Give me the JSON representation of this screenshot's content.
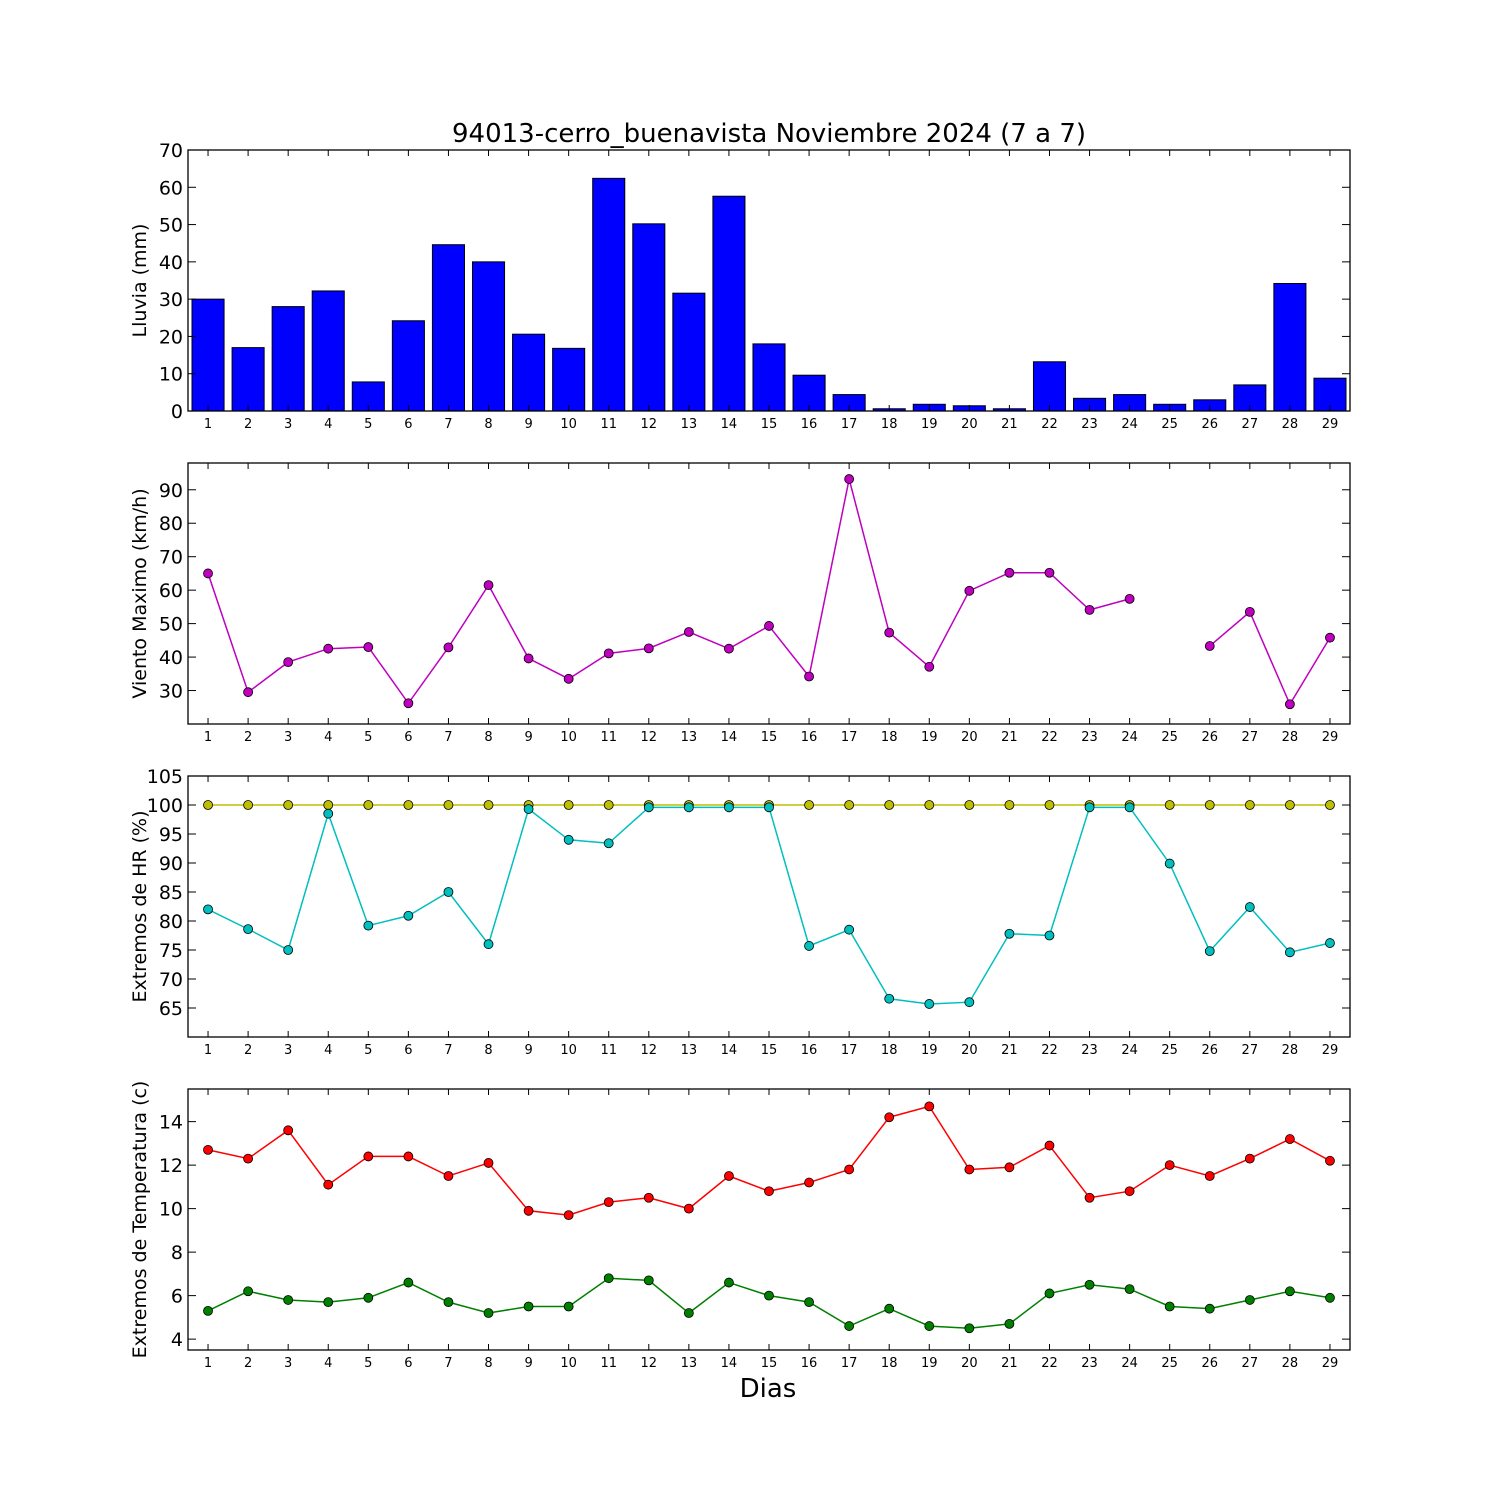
{
  "chart_data": [
    {
      "type": "bar",
      "title": "94013-cerro_buenavista Noviembre 2024  (7 a 7)",
      "ylabel": "Lluvia (mm)",
      "xlabel": "",
      "categories": [
        "1",
        "2",
        "3",
        "4",
        "5",
        "6",
        "7",
        "8",
        "9",
        "10",
        "11",
        "12",
        "13",
        "14",
        "15",
        "16",
        "17",
        "18",
        "19",
        "20",
        "21",
        "22",
        "23",
        "24",
        "25",
        "26",
        "27",
        "28",
        "29"
      ],
      "values": [
        30,
        17,
        28,
        32.2,
        7.8,
        24.2,
        44.6,
        40,
        20.6,
        16.8,
        62.4,
        50.2,
        31.6,
        57.6,
        18,
        9.6,
        4.4,
        0.6,
        1.8,
        1.4,
        0.6,
        13.2,
        3.4,
        4.4,
        1.8,
        3,
        7,
        34.2,
        8.8
      ],
      "ylim": [
        0,
        70
      ],
      "yticks": [
        0,
        10,
        20,
        30,
        40,
        50,
        60,
        70
      ],
      "color": "#0000ff"
    },
    {
      "type": "line",
      "ylabel": "Viento Maximo (km/h)",
      "xlabel": "",
      "categories": [
        "1",
        "2",
        "3",
        "4",
        "5",
        "6",
        "7",
        "8",
        "9",
        "10",
        "11",
        "12",
        "13",
        "14",
        "15",
        "16",
        "17",
        "18",
        "19",
        "20",
        "21",
        "22",
        "23",
        "24",
        "25",
        "26",
        "27",
        "28",
        "29"
      ],
      "series": [
        {
          "values": [
            65,
            29.5,
            38.5,
            42.5,
            43,
            26.2,
            42.9,
            61.5,
            39.6,
            33.5,
            41.1,
            42.6,
            47.5,
            42.5,
            49.3,
            34.2,
            93.2,
            47.3,
            37.1,
            59.8,
            65.2,
            65.2,
            54.1,
            57.4,
            null,
            43.3,
            53.5,
            25.9,
            45.8
          ],
          "color": "#bf00bf"
        }
      ],
      "ylim": [
        20,
        98
      ],
      "yticks": [
        30,
        40,
        50,
        60,
        70,
        80,
        90
      ]
    },
    {
      "type": "line",
      "ylabel": "Extremos de HR (%)",
      "xlabel": "",
      "categories": [
        "1",
        "2",
        "3",
        "4",
        "5",
        "6",
        "7",
        "8",
        "9",
        "10",
        "11",
        "12",
        "13",
        "14",
        "15",
        "16",
        "17",
        "18",
        "19",
        "20",
        "21",
        "22",
        "23",
        "24",
        "25",
        "26",
        "27",
        "28",
        "29"
      ],
      "series": [
        {
          "values": [
            100,
            100,
            100,
            100,
            100,
            100,
            100,
            100,
            100,
            100,
            100,
            100,
            100,
            100,
            100,
            100,
            100,
            100,
            100,
            100,
            100,
            100,
            100,
            100,
            100,
            100,
            100,
            100,
            100
          ],
          "color": "#bfbf00"
        },
        {
          "values": [
            82,
            78.6,
            75,
            98.5,
            79.2,
            80.9,
            85,
            76,
            99.3,
            94,
            93.4,
            99.6,
            99.6,
            99.6,
            99.6,
            75.7,
            78.5,
            66.6,
            65.7,
            66,
            77.8,
            77.5,
            99.6,
            99.6,
            89.9,
            74.8,
            82.4,
            74.6,
            76.2
          ],
          "color": "#00bfbf"
        }
      ],
      "ylim": [
        60,
        105
      ],
      "yticks": [
        65,
        70,
        75,
        80,
        85,
        90,
        95,
        100,
        105
      ]
    },
    {
      "type": "line",
      "ylabel": "Extremos de Temperatura (c)",
      "xlabel": "Dias",
      "categories": [
        "1",
        "2",
        "3",
        "4",
        "5",
        "6",
        "7",
        "8",
        "9",
        "10",
        "11",
        "12",
        "13",
        "14",
        "15",
        "16",
        "17",
        "18",
        "19",
        "20",
        "21",
        "22",
        "23",
        "24",
        "25",
        "26",
        "27",
        "28",
        "29"
      ],
      "series": [
        {
          "values": [
            12.7,
            12.3,
            13.6,
            11.1,
            12.4,
            12.4,
            11.5,
            12.1,
            9.9,
            9.7,
            10.3,
            10.5,
            10,
            11.5,
            10.8,
            11.2,
            11.8,
            14.2,
            14.7,
            11.8,
            11.9,
            12.9,
            10.5,
            10.8,
            12,
            11.5,
            12.3,
            13.2,
            12.2
          ],
          "color": "#ff0000"
        },
        {
          "values": [
            5.3,
            6.2,
            5.8,
            5.7,
            5.9,
            6.6,
            5.7,
            5.2,
            5.5,
            5.5,
            6.8,
            6.7,
            5.2,
            6.6,
            6,
            5.7,
            4.6,
            5.4,
            4.6,
            4.5,
            4.7,
            6.1,
            6.5,
            6.3,
            5.5,
            5.4,
            5.8,
            6.2,
            5.9
          ],
          "color": "#008000"
        }
      ],
      "ylim": [
        3.5,
        15.5
      ],
      "yticks": [
        4,
        6,
        8,
        10,
        12,
        14
      ]
    }
  ]
}
